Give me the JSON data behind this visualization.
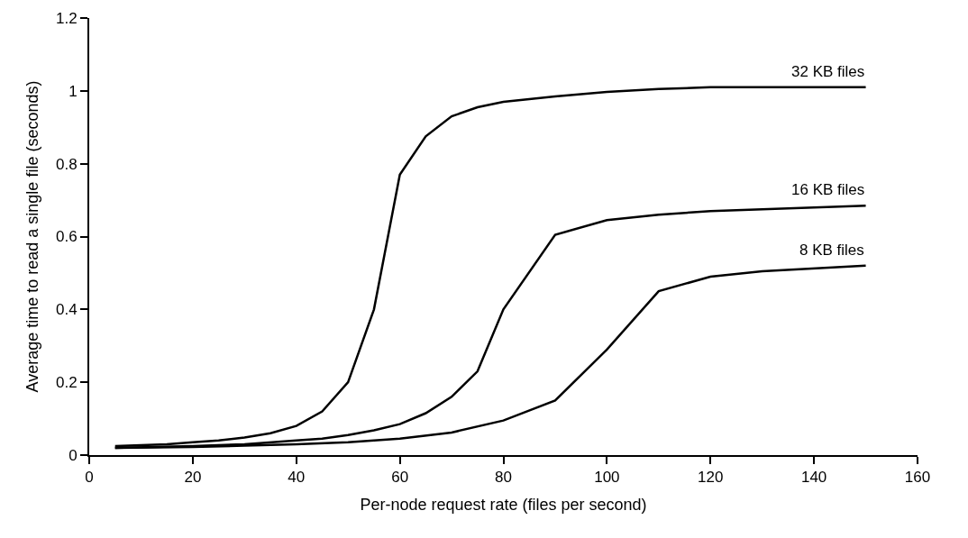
{
  "chart_data": {
    "type": "line",
    "xlabel": "Per-node request rate (files per second)",
    "ylabel": "Average time to read a single file (seconds)",
    "xlim": [
      0,
      160
    ],
    "xticks": [
      0,
      20,
      40,
      60,
      80,
      100,
      120,
      140,
      160
    ],
    "ylim": [
      0,
      1.2
    ],
    "yticks": [
      0,
      0.2,
      0.4,
      0.6,
      0.8,
      1,
      1.2
    ],
    "legend": false,
    "marker": "none",
    "line_style": "solid",
    "series": [
      {
        "name": "32 KB files",
        "color": "#000000",
        "x": [
          5,
          10,
          15,
          20,
          25,
          30,
          35,
          40,
          45,
          50,
          55,
          60,
          65,
          70,
          75,
          80,
          90,
          100,
          110,
          120,
          130,
          140,
          150
        ],
        "values": [
          0.025,
          0.027,
          0.03,
          0.035,
          0.04,
          0.048,
          0.06,
          0.08,
          0.12,
          0.2,
          0.4,
          0.77,
          0.875,
          0.93,
          0.955,
          0.97,
          0.985,
          0.997,
          1.005,
          1.01,
          1.01,
          1.01,
          1.01
        ]
      },
      {
        "name": "16 KB files",
        "color": "#000000",
        "x": [
          5,
          20,
          30,
          40,
          45,
          50,
          55,
          60,
          65,
          70,
          75,
          80,
          90,
          100,
          110,
          120,
          130,
          150
        ],
        "values": [
          0.02,
          0.025,
          0.03,
          0.04,
          0.045,
          0.055,
          0.068,
          0.085,
          0.115,
          0.16,
          0.23,
          0.4,
          0.605,
          0.645,
          0.66,
          0.67,
          0.675,
          0.685
        ]
      },
      {
        "name": "8 KB files",
        "color": "#000000",
        "x": [
          5,
          20,
          30,
          40,
          50,
          60,
          70,
          80,
          90,
          100,
          110,
          120,
          130,
          150
        ],
        "values": [
          0.02,
          0.022,
          0.026,
          0.03,
          0.035,
          0.045,
          0.062,
          0.095,
          0.15,
          0.29,
          0.45,
          0.49,
          0.505,
          0.52
        ]
      }
    ]
  }
}
